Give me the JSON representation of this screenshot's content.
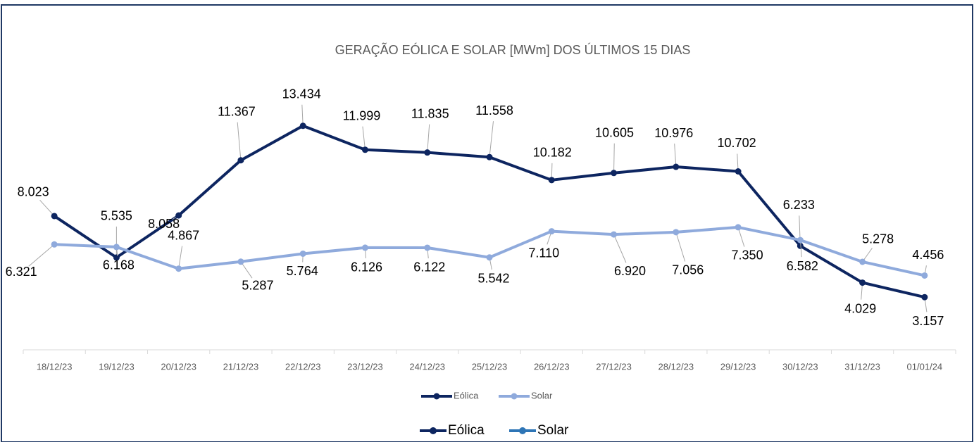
{
  "chart_data": {
    "type": "line",
    "title": "GERAÇÃO EÓLICA E SOLAR [MWm] DOS ÚLTIMOS 15 DIAS",
    "categories": [
      "18/12/23",
      "19/12/23",
      "20/12/23",
      "21/12/23",
      "22/12/23",
      "23/12/23",
      "24/12/23",
      "25/12/23",
      "26/12/23",
      "27/12/23",
      "28/12/23",
      "29/12/23",
      "30/12/23",
      "31/12/23",
      "01/01/24"
    ],
    "series": [
      {
        "name": "Eólica",
        "color": "#0d2560",
        "values": [
          8.023,
          5.535,
          8.058,
          11.367,
          13.434,
          11.999,
          11.835,
          11.558,
          10.182,
          10.605,
          10.976,
          10.702,
          6.233,
          4.029,
          3.157
        ],
        "value_labels": [
          "8.023",
          "5.535",
          "8.058",
          "11.367",
          "13.434",
          "11.999",
          "11.835",
          "11.558",
          "10.182",
          "10.605",
          "10.976",
          "10.702",
          "6.233",
          "4.029",
          "3.157"
        ]
      },
      {
        "name": "Solar",
        "color": "#8faadc",
        "values": [
          6.321,
          6.168,
          4.867,
          5.287,
          5.764,
          6.126,
          6.122,
          5.542,
          7.11,
          6.92,
          7.056,
          7.35,
          6.582,
          5.278,
          4.456
        ],
        "value_labels": [
          "6.321",
          "6.168",
          "4.867",
          "5.287",
          "5.764",
          "6.126",
          "6.122",
          "5.542",
          "7.110",
          "6.920",
          "7.056",
          "7.350",
          "6.582",
          "5.278",
          "4.456"
        ]
      }
    ],
    "ylim": [
      0,
      16
    ],
    "legend2": [
      {
        "name": "Eólica",
        "color": "#0d2560"
      },
      {
        "name": "Solar",
        "color": "#2e75b6"
      }
    ]
  }
}
